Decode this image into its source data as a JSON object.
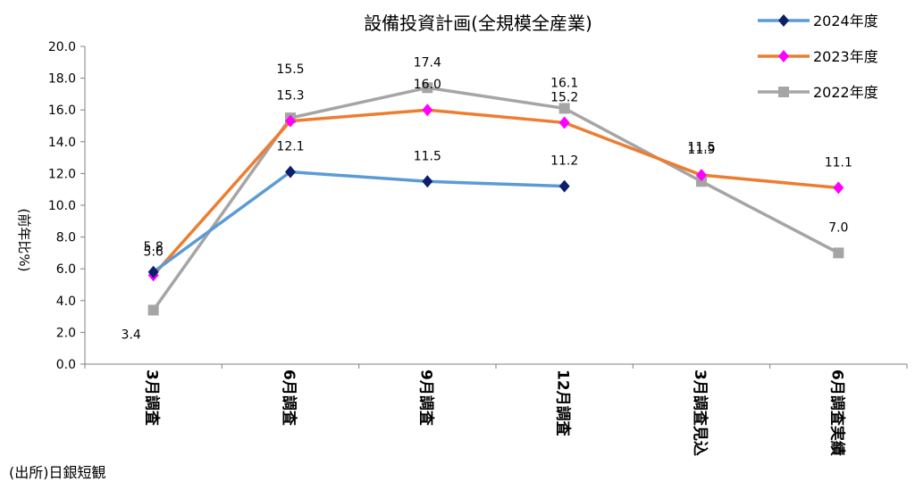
{
  "chart_data": {
    "type": "line",
    "title": "設備投資計画(全規模全産業)",
    "ylabel": "(前年比%)",
    "xlabel": "",
    "ylim": [
      0,
      20
    ],
    "yticks": [
      "0.0",
      "2.0",
      "4.0",
      "6.0",
      "8.0",
      "10.0",
      "12.0",
      "14.0",
      "16.0",
      "18.0",
      "20.0"
    ],
    "categories": [
      "3月調査",
      "6月調査",
      "9月調査",
      "12月調査",
      "3月調査見込",
      "6月調査実績"
    ],
    "legend_position": "top-right",
    "grid": false,
    "series": [
      {
        "name": "2024年度",
        "color": "#5B9BD5",
        "marker": "diamond",
        "marker_color": "#0D1F6B",
        "values": [
          5.8,
          12.1,
          11.5,
          11.2,
          null,
          null
        ],
        "labels": [
          "5.8",
          "12.1",
          "11.5",
          "11.2",
          "",
          ""
        ]
      },
      {
        "name": "2023年度",
        "color": "#ED7D31",
        "marker": "diamond",
        "marker_color": "#FF00FF",
        "values": [
          5.6,
          15.3,
          16.0,
          15.2,
          11.9,
          11.1
        ],
        "labels": [
          "5.6",
          "15.3",
          "16.0",
          "15.2",
          "11.9",
          "11.1"
        ]
      },
      {
        "name": "2022年度",
        "color": "#A5A5A5",
        "marker": "square",
        "marker_color": "#A5A5A5",
        "values": [
          3.4,
          15.5,
          17.4,
          16.1,
          11.5,
          7.0
        ],
        "labels": [
          "3.4",
          "15.5",
          "17.4",
          "16.1",
          "11.5",
          "7.0"
        ]
      }
    ]
  },
  "source": "(出所)日銀短観"
}
